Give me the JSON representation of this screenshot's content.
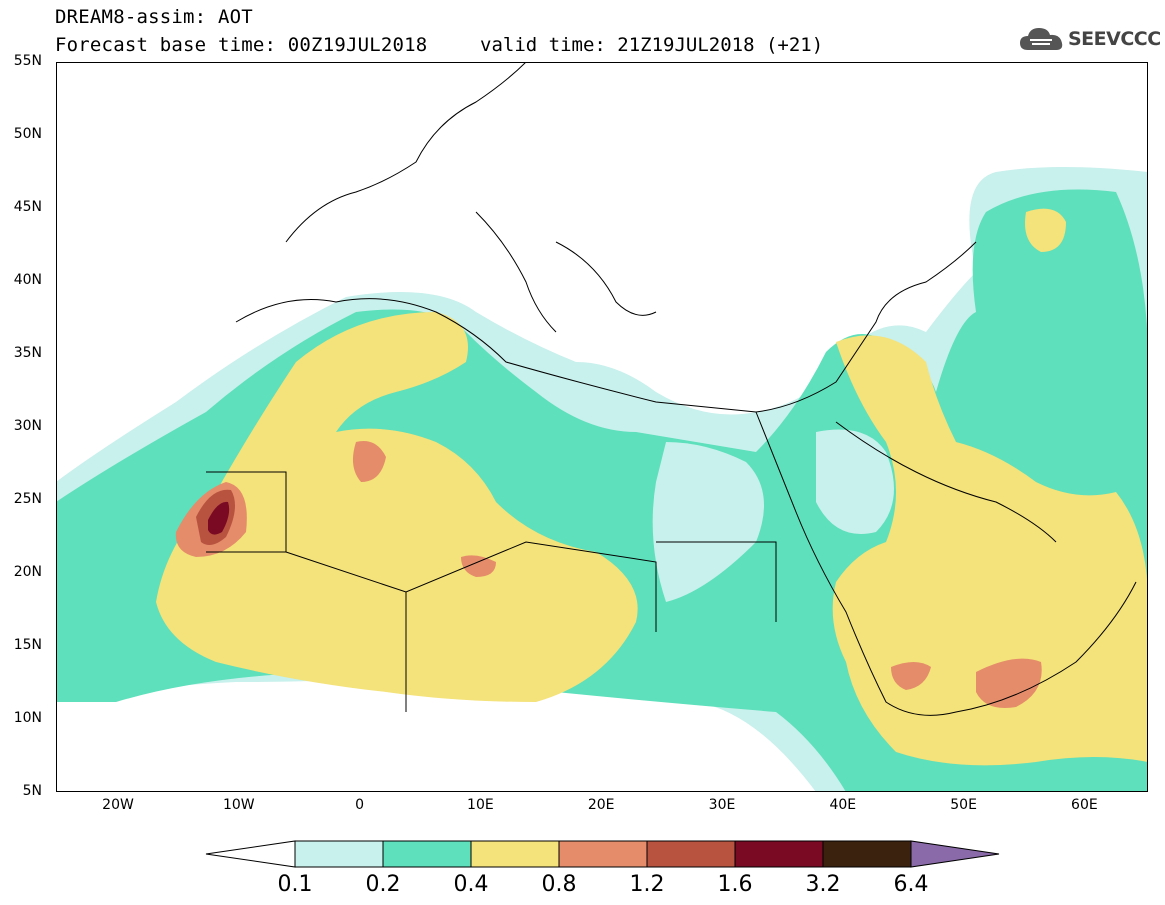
{
  "header": {
    "model_line": "DREAM8-assim: AOT",
    "base_time": "Forecast base time: 00Z19JUL2018",
    "valid_time": "valid time: 21Z19JUL2018 (+21)"
  },
  "logo": {
    "text": "SEEVCCC",
    "icon": "cloud-icon"
  },
  "map": {
    "lat_labels": [
      "55N",
      "50N",
      "45N",
      "40N",
      "35N",
      "30N",
      "25N",
      "20N",
      "15N",
      "10N",
      "5N"
    ],
    "lon_labels": [
      "20W",
      "10W",
      "0",
      "10E",
      "20E",
      "30E",
      "40E",
      "50E",
      "60E"
    ]
  },
  "colorbar": {
    "labels": [
      "0.1",
      "0.2",
      "0.4",
      "0.8",
      "1.2",
      "1.6",
      "3.2",
      "6.4"
    ],
    "colors": [
      "#ffffff",
      "#c8f0ec",
      "#5de0bb",
      "#f4e27a",
      "#e58c6a",
      "#b85340",
      "#7a0a24",
      "#3b220e",
      "#8a6aa8"
    ]
  }
}
